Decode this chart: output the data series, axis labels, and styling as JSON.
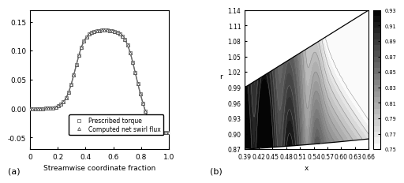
{
  "left_xlabel": "Streamwise coordinate fraction",
  "left_label_a": "(a)",
  "left_label_b": "(b)",
  "left_ylim": [
    -0.07,
    0.17
  ],
  "left_yticks": [
    -0.05,
    0.0,
    0.05,
    0.1,
    0.15
  ],
  "left_xlim": [
    0,
    1
  ],
  "left_xticks": [
    0,
    0.2,
    0.4,
    0.6,
    0.8,
    1.0
  ],
  "legend1": "Prescribed torque",
  "legend2": "Computed net swirl flux",
  "right_xlabel": "x",
  "right_ylabel": "r",
  "right_xlim": [
    0.39,
    0.66
  ],
  "right_ylim": [
    0.87,
    1.14
  ],
  "right_xticks": [
    0.39,
    0.42,
    0.45,
    0.48,
    0.51,
    0.54,
    0.57,
    0.6,
    0.63,
    0.66
  ],
  "right_xtick_labels": [
    "0.39",
    "0.42",
    "0.45",
    "0.48",
    "0.51",
    "0.54",
    "0.57",
    "0.60",
    "0.63",
    "0.66"
  ],
  "right_yticks": [
    0.87,
    0.9,
    0.93,
    0.96,
    0.99,
    1.02,
    1.05,
    1.08,
    1.11,
    1.14
  ],
  "colorbar_ticks": [
    0.75,
    0.77,
    0.79,
    0.81,
    0.83,
    0.85,
    0.87,
    0.89,
    0.91,
    0.93
  ],
  "colorbar_labels": [
    "0.93",
    "0.91",
    "0.89",
    "0.87",
    "0.85",
    "0.83",
    "0.81",
    "0.79",
    "0.77",
    "0.75"
  ]
}
